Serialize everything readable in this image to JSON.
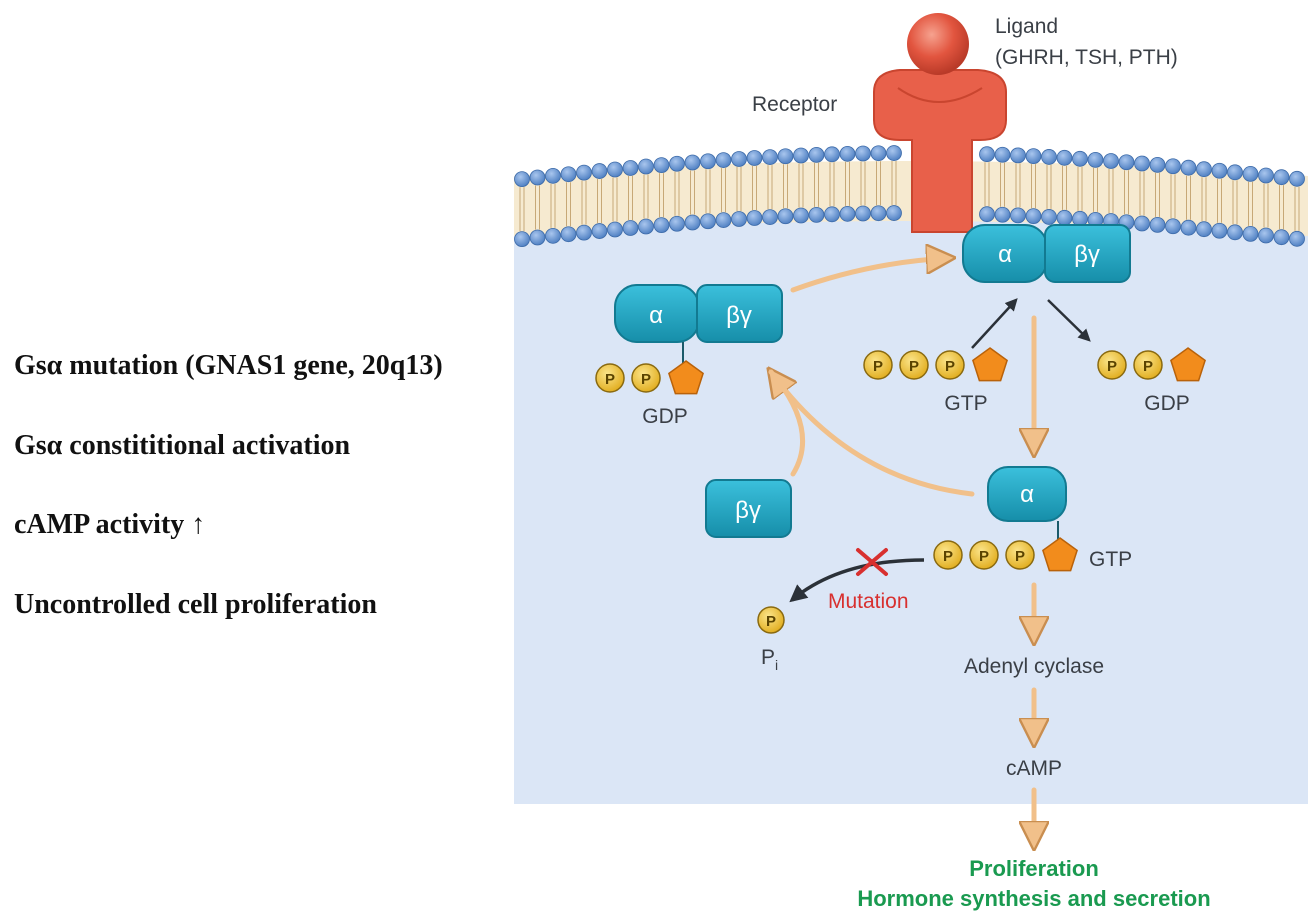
{
  "notes": [
    "Gsα mutation (GNAS1 gene, 20q13)",
    "Gsα constititional activation",
    "cAMP activity ↑",
    "Uncontrolled cell proliferation"
  ],
  "diagram": {
    "ligand_label": "Ligand",
    "ligand_examples": "(GHRH, TSH, PTH)",
    "receptor_label": "Receptor",
    "alpha": "α",
    "beta_gamma": "βγ",
    "phosphate": "P",
    "gdp": "GDP",
    "gtp": "GTP",
    "mutation_label": "Mutation",
    "pi_label": "P",
    "pi_subscript": "i",
    "adenyl_cyclase": "Adenyl cyclase",
    "camp": "cAMP",
    "outcome_1": "Proliferation",
    "outcome_2": "Hormone synthesis and secretion"
  },
  "colors": {
    "cytoplasm": "#dbe6f6",
    "membrane_head": "#5b8fd1",
    "receptor": "#e8604a",
    "protein": "#1ea3c0",
    "phosphate": "#f3c531",
    "pentagon": "#f28c1c",
    "arrow_tan": "#f1c08a",
    "arrow_dark": "#2b3138",
    "mutation": "#d8302f",
    "outcome": "#1a9a50"
  }
}
